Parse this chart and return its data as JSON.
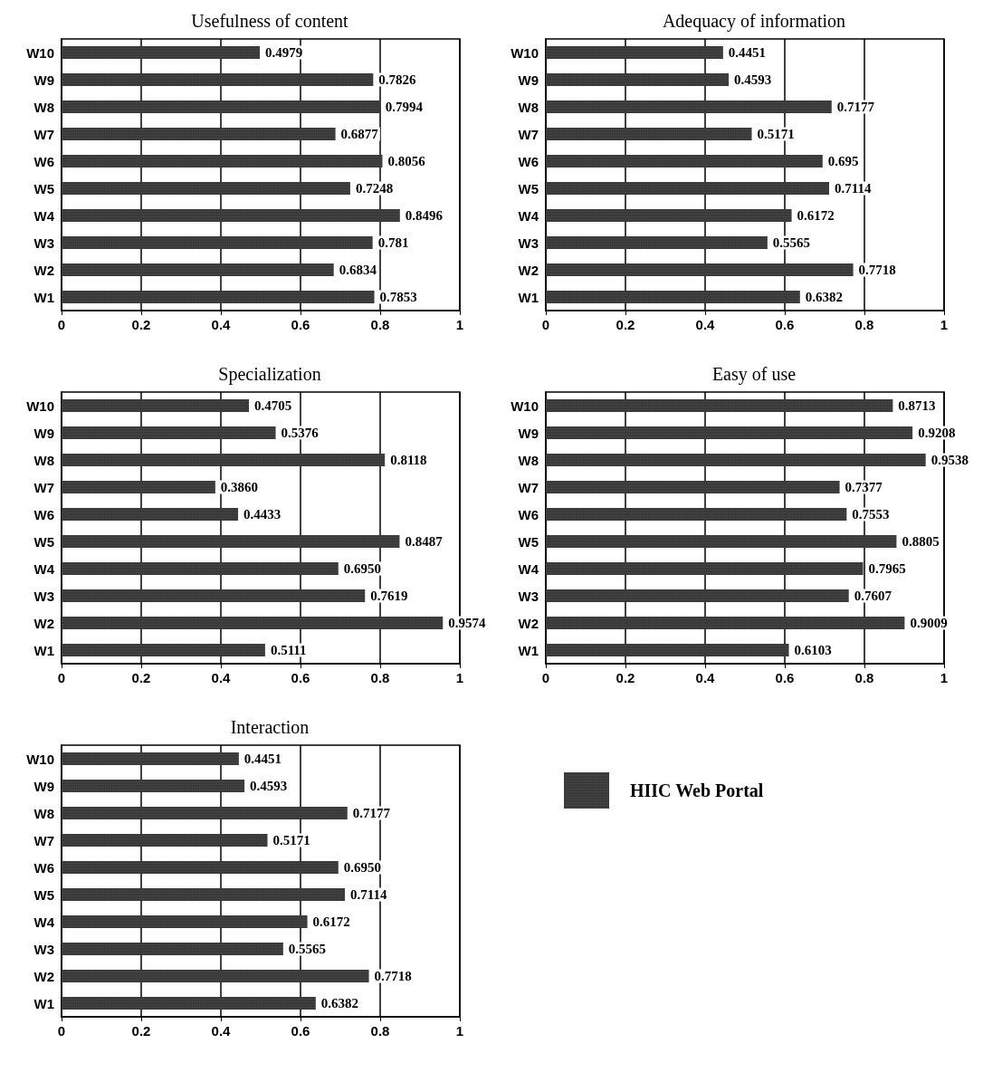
{
  "chart_data": [
    {
      "type": "bar",
      "orientation": "horizontal",
      "title": "Usefulness of content",
      "categories": [
        "W10",
        "W9",
        "W8",
        "W7",
        "W6",
        "W5",
        "W4",
        "W3",
        "W2",
        "W1"
      ],
      "values": [
        0.4979,
        0.7826,
        0.7994,
        0.6877,
        0.8056,
        0.7248,
        0.8496,
        0.781,
        0.6834,
        0.7853
      ],
      "value_labels": [
        "0.4979",
        "0.7826",
        "0.7994",
        "0.6877",
        "0.8056",
        "0.7248",
        "0.8496",
        "0.781",
        "0.6834",
        "0.7853"
      ],
      "color": "#3a3a3a",
      "xlim": [
        0,
        1
      ],
      "xticks": [
        0,
        0.2,
        0.4,
        0.6,
        0.8,
        1
      ],
      "grid": "x",
      "legend": false
    },
    {
      "type": "bar",
      "orientation": "horizontal",
      "title": "Adequacy of information",
      "categories": [
        "W10",
        "W9",
        "W8",
        "W7",
        "W6",
        "W5",
        "W4",
        "W3",
        "W2",
        "W1"
      ],
      "values": [
        0.4451,
        0.4593,
        0.7177,
        0.5171,
        0.695,
        0.7114,
        0.6172,
        0.5565,
        0.7718,
        0.6382
      ],
      "value_labels": [
        "0.4451",
        "0.4593",
        "0.7177",
        "0.5171",
        "0.695",
        "0.7114",
        "0.6172",
        "0.5565",
        "0.7718",
        "0.6382"
      ],
      "color": "#3a3a3a",
      "xlim": [
        0,
        1
      ],
      "xticks": [
        0,
        0.2,
        0.4,
        0.6,
        0.8,
        1
      ],
      "grid": "x",
      "legend": false
    },
    {
      "type": "bar",
      "orientation": "horizontal",
      "title": "Specialization",
      "categories": [
        "W10",
        "W9",
        "W8",
        "W7",
        "W6",
        "W5",
        "W4",
        "W3",
        "W2",
        "W1"
      ],
      "values": [
        0.4705,
        0.5376,
        0.8118,
        0.386,
        0.4433,
        0.8487,
        0.695,
        0.7619,
        0.9574,
        0.5111
      ],
      "value_labels": [
        "0.4705",
        "0.5376",
        "0.8118",
        "0.3860",
        "0.4433",
        "0.8487",
        "0.6950",
        "0.7619",
        "0.9574",
        "0.5111"
      ],
      "color": "#3a3a3a",
      "xlim": [
        0,
        1
      ],
      "xticks": [
        0,
        0.2,
        0.4,
        0.6,
        0.8,
        1
      ],
      "grid": "x",
      "legend": false
    },
    {
      "type": "bar",
      "orientation": "horizontal",
      "title": "Easy of use",
      "categories": [
        "W10",
        "W9",
        "W8",
        "W7",
        "W6",
        "W5",
        "W4",
        "W3",
        "W2",
        "W1"
      ],
      "values": [
        0.8713,
        0.9208,
        0.9538,
        0.7377,
        0.7553,
        0.8805,
        0.7965,
        0.7607,
        0.9009,
        0.6103
      ],
      "value_labels": [
        "0.8713",
        "0.9208",
        "0.9538",
        "0.7377",
        "0.7553",
        "0.8805",
        "0.7965",
        "0.7607",
        "0.9009",
        "0.6103"
      ],
      "color": "#3a3a3a",
      "xlim": [
        0,
        1
      ],
      "xticks": [
        0,
        0.2,
        0.4,
        0.6,
        0.8,
        1
      ],
      "grid": "x",
      "legend": false
    },
    {
      "type": "bar",
      "orientation": "horizontal",
      "title": "Interaction",
      "categories": [
        "W10",
        "W9",
        "W8",
        "W7",
        "W6",
        "W5",
        "W4",
        "W3",
        "W2",
        "W1"
      ],
      "series": [
        {
          "name": "HIIC Web Portal",
          "color": "#3a3a3a",
          "values": [
            0.4451,
            0.4593,
            0.7177,
            0.5171,
            0.695,
            0.7114,
            0.6172,
            0.5565,
            0.7718,
            0.6382
          ],
          "value_labels": [
            "0.4451",
            "0.4593",
            "0.7177",
            "0.5171",
            "0.6950",
            "0.7114",
            "0.6172",
            "0.5565",
            "0.7718",
            "0.6382"
          ]
        }
      ],
      "xlim": [
        0,
        1
      ],
      "xticks": [
        0,
        0.2,
        0.4,
        0.6,
        0.8,
        1
      ],
      "grid": "x",
      "legend": "right"
    }
  ]
}
